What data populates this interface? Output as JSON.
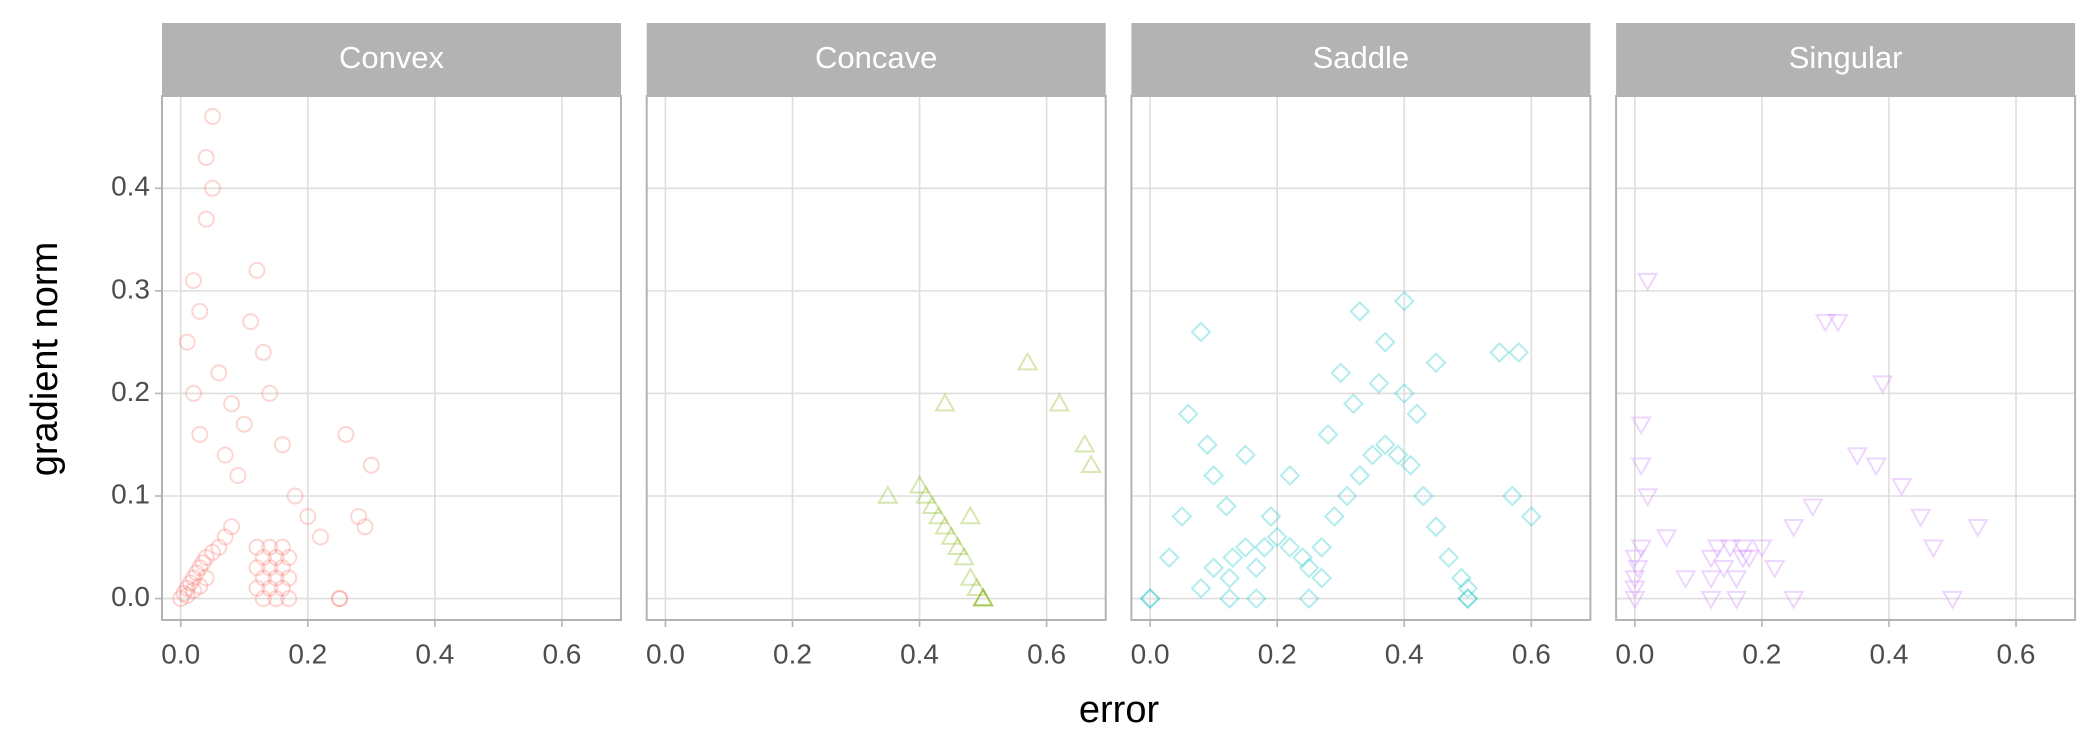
{
  "chart_data": [
    {
      "type": "scatter",
      "title": "Convex",
      "xlabel": "error",
      "ylabel": "gradient norm",
      "color": "#F8766D",
      "marker": "circle",
      "opacity": 0.3,
      "x": [
        0,
        0.005,
        0.01,
        0.015,
        0.02,
        0.025,
        0.03,
        0.035,
        0.04,
        0.05,
        0.06,
        0.07,
        0.08,
        0.01,
        0.02,
        0.03,
        0.04,
        0.12,
        0.12,
        0.12,
        0.13,
        0.13,
        0.13,
        0.14,
        0.14,
        0.14,
        0.15,
        0.15,
        0.15,
        0.16,
        0.16,
        0.16,
        0.17,
        0.17,
        0.17,
        0.05,
        0.04,
        0.05,
        0.04,
        0.02,
        0.03,
        0.01,
        0.06,
        0.02,
        0.08,
        0.1,
        0.03,
        0.07,
        0.12,
        0.11,
        0.13,
        0.09,
        0.14,
        0.16,
        0.18,
        0.2,
        0.22,
        0.26,
        0.28,
        0.3,
        0.29,
        0.25,
        0.25
      ],
      "y": [
        0,
        0.005,
        0.01,
        0.015,
        0.02,
        0.025,
        0.03,
        0.035,
        0.04,
        0.045,
        0.05,
        0.06,
        0.07,
        0.003,
        0.008,
        0.012,
        0.02,
        0.01,
        0.03,
        0.05,
        0,
        0.02,
        0.04,
        0.01,
        0.03,
        0.05,
        0,
        0.02,
        0.04,
        0.01,
        0.03,
        0.05,
        0,
        0.02,
        0.04,
        0.47,
        0.43,
        0.4,
        0.37,
        0.31,
        0.28,
        0.25,
        0.22,
        0.2,
        0.19,
        0.17,
        0.16,
        0.14,
        0.32,
        0.27,
        0.24,
        0.12,
        0.2,
        0.15,
        0.1,
        0.08,
        0.06,
        0.16,
        0.08,
        0.13,
        0.07,
        0,
        0
      ],
      "xlim": [
        -0.0295,
        0.693
      ],
      "ylim": [
        -0.0209,
        0.49
      ],
      "xticks": [
        {
          "value": 0,
          "label": "0.0"
        },
        {
          "value": 0.2,
          "label": "0.2"
        },
        {
          "value": 0.4,
          "label": "0.4"
        },
        {
          "value": 0.6,
          "label": "0.6"
        }
      ],
      "yticks": [
        {
          "value": 0,
          "label": "0.0"
        },
        {
          "value": 0.1,
          "label": "0.1"
        },
        {
          "value": 0.2,
          "label": "0.2"
        },
        {
          "value": 0.3,
          "label": "0.3"
        },
        {
          "value": 0.4,
          "label": "0.4"
        }
      ],
      "grid": true
    },
    {
      "type": "scatter",
      "title": "Concave",
      "color": "#7CAE00",
      "marker": "triangle",
      "opacity": 0.3,
      "x": [
        0.5,
        0.5,
        0.5,
        0.49,
        0.48,
        0.47,
        0.46,
        0.45,
        0.44,
        0.43,
        0.42,
        0.41,
        0.4,
        0.35,
        0.44,
        0.57,
        0.62,
        0.66,
        0.67,
        0.48
      ],
      "y": [
        0,
        0,
        0,
        0.01,
        0.02,
        0.04,
        0.05,
        0.06,
        0.07,
        0.08,
        0.09,
        0.1,
        0.11,
        0.1,
        0.19,
        0.23,
        0.19,
        0.15,
        0.13,
        0.08
      ],
      "xlim": [
        -0.0295,
        0.693
      ],
      "ylim": [
        -0.0209,
        0.49
      ],
      "xticks": [
        {
          "value": 0,
          "label": "0.0"
        },
        {
          "value": 0.2,
          "label": "0.2"
        },
        {
          "value": 0.4,
          "label": "0.4"
        },
        {
          "value": 0.6,
          "label": "0.6"
        }
      ],
      "yticks": [
        0,
        0.1,
        0.2,
        0.3,
        0.4
      ],
      "grid": true
    },
    {
      "type": "scatter",
      "title": "Saddle",
      "color": "#00BFC4",
      "marker": "diamond",
      "opacity": 0.3,
      "x": [
        0,
        0,
        0.125,
        0.125,
        0.13,
        0.15,
        0.167,
        0.167,
        0.18,
        0.2,
        0.22,
        0.25,
        0.25,
        0.24,
        0.27,
        0.29,
        0.31,
        0.33,
        0.35,
        0.37,
        0.39,
        0.41,
        0.43,
        0.45,
        0.47,
        0.49,
        0.5,
        0.5,
        0.5,
        0.32,
        0.36,
        0.4,
        0.42,
        0.3,
        0.33,
        0.4,
        0.37,
        0.08,
        0.06,
        0.09,
        0.1,
        0.05,
        0.03,
        0.58,
        0.55,
        0.6,
        0.57,
        0.45,
        0.28,
        0.22,
        0.15,
        0.12,
        0.19,
        0.27,
        0.1,
        0.08
      ],
      "y": [
        0,
        0,
        0,
        0.02,
        0.04,
        0.05,
        0,
        0.03,
        0.05,
        0.06,
        0.05,
        0,
        0.03,
        0.04,
        0.05,
        0.08,
        0.1,
        0.12,
        0.14,
        0.15,
        0.14,
        0.13,
        0.1,
        0.07,
        0.04,
        0.02,
        0,
        0,
        0.01,
        0.19,
        0.21,
        0.2,
        0.18,
        0.22,
        0.28,
        0.29,
        0.25,
        0.26,
        0.18,
        0.15,
        0.12,
        0.08,
        0.04,
        0.24,
        0.24,
        0.08,
        0.1,
        0.23,
        0.16,
        0.12,
        0.14,
        0.09,
        0.08,
        0.02,
        0.03,
        0.01
      ],
      "xlim": [
        -0.0295,
        0.693
      ],
      "ylim": [
        -0.0209,
        0.49
      ],
      "xticks": [
        {
          "value": 0,
          "label": "0.0"
        },
        {
          "value": 0.2,
          "label": "0.2"
        },
        {
          "value": 0.4,
          "label": "0.4"
        },
        {
          "value": 0.6,
          "label": "0.6"
        }
      ],
      "yticks": [
        0,
        0.1,
        0.2,
        0.3,
        0.4
      ],
      "grid": true
    },
    {
      "type": "scatter",
      "title": "Singular",
      "color": "#C77CFF",
      "marker": "down-triangle",
      "opacity": 0.3,
      "x": [
        0,
        0,
        0,
        0.005,
        0.01,
        0,
        0.12,
        0.12,
        0.12,
        0.13,
        0.14,
        0.15,
        0.16,
        0.16,
        0.17,
        0.17,
        0.25,
        0.5,
        0.02,
        0.01,
        0.01,
        0.02,
        0.3,
        0.32,
        0.39,
        0.38,
        0.35,
        0.42,
        0.45,
        0.47,
        0.54,
        0.2,
        0.22,
        0.25,
        0.28,
        0.18,
        0.05,
        0.08
      ],
      "y": [
        0,
        0.01,
        0.02,
        0.03,
        0.05,
        0.04,
        0,
        0.02,
        0.04,
        0.05,
        0.03,
        0.05,
        0,
        0.02,
        0.04,
        0.05,
        0,
        0,
        0.31,
        0.17,
        0.13,
        0.1,
        0.27,
        0.27,
        0.21,
        0.13,
        0.14,
        0.11,
        0.08,
        0.05,
        0.07,
        0.05,
        0.03,
        0.07,
        0.09,
        0.04,
        0.06,
        0.02
      ],
      "xlim": [
        -0.0295,
        0.693
      ],
      "ylim": [
        -0.0209,
        0.49
      ],
      "xticks": [
        {
          "value": 0,
          "label": "0.0"
        },
        {
          "value": 0.2,
          "label": "0.2"
        },
        {
          "value": 0.4,
          "label": "0.4"
        },
        {
          "value": 0.6,
          "label": "0.6"
        }
      ],
      "yticks": [
        0,
        0.1,
        0.2,
        0.3,
        0.4
      ],
      "grid": true
    }
  ]
}
